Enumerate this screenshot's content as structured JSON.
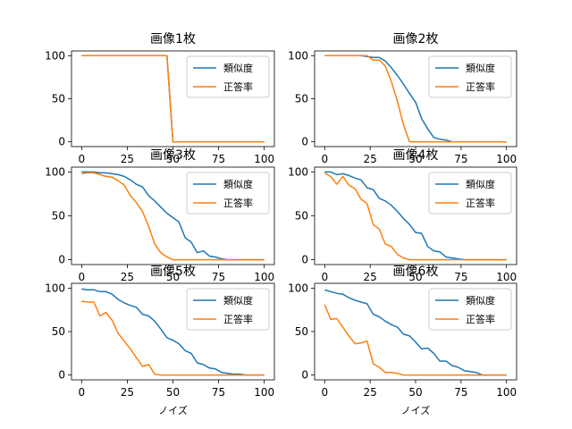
{
  "chart_data": [
    {
      "type": "line",
      "title": "画像1枚",
      "xlabel": "",
      "xlim": [
        0,
        100
      ],
      "ylim": [
        0,
        100
      ],
      "xticks": [
        0,
        25,
        50,
        75,
        100
      ],
      "yticks": [
        0,
        50,
        100
      ],
      "legend": "top-right",
      "series": [
        {
          "name": "類似度",
          "color": "#1f77b4",
          "x": [
            0,
            3.3,
            6.7,
            10,
            13.3,
            16.7,
            20,
            23.3,
            26.7,
            30,
            33.3,
            36.7,
            40,
            43.3,
            46.7,
            50,
            53.3,
            56.7,
            60,
            63.3,
            66.7,
            70,
            73.3,
            76.7,
            80,
            83.3,
            86.7,
            90,
            93.3,
            96.7,
            100
          ],
          "y": [
            100,
            100,
            100,
            100,
            100,
            100,
            100,
            100,
            100,
            100,
            100,
            100,
            100,
            100,
            100,
            0,
            0,
            0,
            0,
            0,
            0,
            0,
            0,
            0,
            0,
            0,
            0,
            0,
            0,
            0,
            0
          ]
        },
        {
          "name": "正答率",
          "color": "#ff7f0e",
          "x": [
            0,
            3.3,
            6.7,
            10,
            13.3,
            16.7,
            20,
            23.3,
            26.7,
            30,
            33.3,
            36.7,
            40,
            43.3,
            46.7,
            50,
            53.3,
            56.7,
            60,
            63.3,
            66.7,
            70,
            73.3,
            76.7,
            80,
            83.3,
            86.7,
            90,
            93.3,
            96.7,
            100
          ],
          "y": [
            100,
            100,
            100,
            100,
            100,
            100,
            100,
            100,
            100,
            100,
            100,
            100,
            100,
            100,
            100,
            0,
            0,
            0,
            0,
            0,
            0,
            0,
            0,
            0,
            0,
            0,
            0,
            0,
            0,
            0,
            0
          ]
        }
      ]
    },
    {
      "type": "line",
      "title": "画像2枚",
      "xlabel": "",
      "xlim": [
        0,
        100
      ],
      "ylim": [
        0,
        100
      ],
      "xticks": [
        0,
        25,
        50,
        75,
        100
      ],
      "yticks": [
        0,
        50,
        100
      ],
      "legend": "top-right",
      "series": [
        {
          "name": "類似度",
          "color": "#1f77b4",
          "x": [
            0,
            3.3,
            6.7,
            10,
            13.3,
            16.7,
            20,
            23.3,
            26.7,
            30,
            33.3,
            36.7,
            40,
            43.3,
            46.7,
            50,
            53.3,
            56.7,
            60,
            63.3,
            66.7,
            70,
            73.3,
            76.7,
            80,
            83.3,
            86.7,
            90,
            93.3,
            96.7,
            100
          ],
          "y": [
            100,
            100,
            100,
            100,
            100,
            100,
            100,
            99,
            98,
            98,
            94,
            86,
            77,
            67,
            56,
            46,
            27,
            15,
            5,
            3,
            2,
            0,
            0,
            0,
            0,
            0,
            0,
            0,
            0,
            0,
            0
          ]
        },
        {
          "name": "正答率",
          "color": "#ff7f0e",
          "x": [
            0,
            3.3,
            6.7,
            10,
            13.3,
            16.7,
            20,
            23.3,
            26.7,
            30,
            33.3,
            36.7,
            40,
            43.3,
            46.7,
            50,
            53.3,
            56.7,
            60,
            63.3,
            66.7,
            70,
            73.3,
            76.7,
            80,
            83.3,
            86.7,
            90,
            93.3,
            96.7,
            100
          ],
          "y": [
            100,
            100,
            100,
            100,
            100,
            100,
            100,
            100,
            95,
            95,
            88,
            70,
            47,
            20,
            0,
            0,
            0,
            0,
            0,
            0,
            0,
            0,
            0,
            0,
            0,
            0,
            0,
            0,
            0,
            0,
            0
          ]
        }
      ]
    },
    {
      "type": "line",
      "title": "画像3枚",
      "xlabel": "",
      "xlim": [
        0,
        100
      ],
      "ylim": [
        0,
        100
      ],
      "xticks": [
        0,
        25,
        50,
        75,
        100
      ],
      "yticks": [
        0,
        50,
        100
      ],
      "legend": "top-right",
      "series": [
        {
          "name": "類似度",
          "color": "#1f77b4",
          "x": [
            0,
            3.3,
            6.7,
            10,
            13.3,
            16.7,
            20,
            23.3,
            26.7,
            30,
            33.3,
            36.7,
            40,
            43.3,
            46.7,
            50,
            53.3,
            56.7,
            60,
            63.3,
            66.7,
            70,
            73.3,
            76.7,
            80,
            83.3,
            86.7,
            90,
            93.3,
            96.7,
            100
          ],
          "y": [
            100,
            100,
            100,
            99,
            99,
            98,
            97,
            95,
            91,
            86,
            83,
            73,
            67,
            60,
            53,
            48,
            43,
            25,
            20,
            8,
            10,
            4,
            3,
            1,
            0,
            0,
            0,
            0,
            0,
            0,
            0
          ]
        },
        {
          "name": "正答率",
          "color": "#ff7f0e",
          "x": [
            0,
            3.3,
            6.7,
            10,
            13.3,
            16.7,
            20,
            23.3,
            26.7,
            30,
            33.3,
            36.7,
            40,
            43.3,
            46.7,
            50,
            53.3,
            56.7,
            60,
            63.3,
            66.7,
            70,
            73.3,
            76.7,
            80,
            83.3,
            86.7,
            90,
            93.3,
            96.7,
            100
          ],
          "y": [
            98,
            99,
            99,
            97,
            95,
            94,
            90,
            85,
            73,
            65,
            55,
            38,
            18,
            8,
            3,
            0,
            0,
            0,
            0,
            0,
            0,
            0,
            0,
            0,
            0,
            0,
            0,
            0,
            0,
            0,
            0
          ]
        }
      ]
    },
    {
      "type": "line",
      "title": "画像4枚",
      "xlabel": "",
      "xlim": [
        0,
        100
      ],
      "ylim": [
        0,
        100
      ],
      "xticks": [
        0,
        25,
        50,
        75,
        100
      ],
      "yticks": [
        0,
        50,
        100
      ],
      "legend": "top-right",
      "series": [
        {
          "name": "類似度",
          "color": "#1f77b4",
          "x": [
            0,
            3.3,
            6.7,
            10,
            13.3,
            16.7,
            20,
            23.3,
            26.7,
            30,
            33.3,
            36.7,
            40,
            43.3,
            46.7,
            50,
            53.3,
            56.7,
            60,
            63.3,
            66.7,
            70,
            73.3,
            76.7,
            80,
            83.3,
            86.7,
            90,
            93.3,
            96.7,
            100
          ],
          "y": [
            100,
            100,
            97,
            98,
            96,
            93,
            91,
            82,
            80,
            70,
            67,
            62,
            55,
            47,
            40,
            31,
            30,
            15,
            10,
            9,
            3,
            2,
            1,
            0,
            0,
            0,
            0,
            0,
            0,
            0,
            0
          ]
        },
        {
          "name": "正答率",
          "color": "#ff7f0e",
          "x": [
            0,
            3.3,
            6.7,
            10,
            13.3,
            16.7,
            20,
            23.3,
            26.7,
            30,
            33.3,
            36.7,
            40,
            43.3,
            46.7,
            50,
            53.3,
            56.7,
            60,
            63.3,
            66.7,
            70,
            73.3,
            76.7,
            80,
            83.3,
            86.7,
            90,
            93.3,
            96.7,
            100
          ],
          "y": [
            99,
            95,
            86,
            95,
            85,
            81,
            69,
            64,
            40,
            35,
            18,
            15,
            6,
            2,
            0,
            0,
            0,
            0,
            0,
            0,
            0,
            0,
            0,
            0,
            0,
            0,
            0,
            0,
            0,
            0,
            0
          ]
        }
      ]
    },
    {
      "type": "line",
      "title": "画像5枚",
      "xlabel": "ノイズ",
      "xlim": [
        0,
        100
      ],
      "ylim": [
        0,
        100
      ],
      "xticks": [
        0,
        25,
        50,
        75,
        100
      ],
      "yticks": [
        0,
        50,
        100
      ],
      "legend": "top-right",
      "series": [
        {
          "name": "類似度",
          "color": "#1f77b4",
          "x": [
            0,
            3.3,
            6.7,
            10,
            13.3,
            16.7,
            20,
            23.3,
            26.7,
            30,
            33.3,
            36.7,
            40,
            43.3,
            46.7,
            50,
            53.3,
            56.7,
            60,
            63.3,
            66.7,
            70,
            73.3,
            76.7,
            80,
            83.3,
            86.7,
            90,
            93.3,
            96.7,
            100
          ],
          "y": [
            99,
            98,
            98,
            96,
            96,
            93,
            87,
            83,
            80,
            78,
            70,
            68,
            62,
            53,
            43,
            40,
            36,
            28,
            25,
            14,
            12,
            8,
            7,
            3,
            2,
            1,
            1,
            0,
            0,
            0,
            0
          ]
        },
        {
          "name": "正答率",
          "color": "#ff7f0e",
          "x": [
            0,
            3.3,
            6.7,
            10,
            13.3,
            16.7,
            20,
            23.3,
            26.7,
            30,
            33.3,
            36.7,
            40,
            43.3,
            46.7,
            50,
            53.3,
            56.7,
            60,
            63.3,
            66.7,
            70,
            73.3,
            76.7,
            80,
            83.3,
            86.7,
            90,
            93.3,
            96.7,
            100
          ],
          "y": [
            85,
            84,
            84,
            68,
            72,
            63,
            48,
            39,
            30,
            20,
            10,
            12,
            1,
            0,
            0,
            0,
            0,
            0,
            0,
            0,
            0,
            0,
            0,
            0,
            0,
            0,
            0,
            0,
            0,
            0,
            0
          ]
        }
      ]
    },
    {
      "type": "line",
      "title": "画像6枚",
      "xlabel": "ノイズ",
      "xlim": [
        0,
        100
      ],
      "ylim": [
        0,
        100
      ],
      "xticks": [
        0,
        25,
        50,
        75,
        100
      ],
      "yticks": [
        0,
        50,
        100
      ],
      "legend": "top-right",
      "series": [
        {
          "name": "類似度",
          "color": "#1f77b4",
          "x": [
            0,
            3.3,
            6.7,
            10,
            13.3,
            16.7,
            20,
            23.3,
            26.7,
            30,
            33.3,
            36.7,
            40,
            43.3,
            46.7,
            50,
            53.3,
            56.7,
            60,
            63.3,
            66.7,
            70,
            73.3,
            76.7,
            80,
            83.3,
            86.7,
            90,
            93.3,
            96.7,
            100
          ],
          "y": [
            98,
            96,
            94,
            93,
            89,
            86,
            84,
            82,
            70,
            67,
            62,
            58,
            55,
            47,
            45,
            38,
            30,
            31,
            25,
            16,
            16,
            11,
            9,
            5,
            4,
            3,
            0,
            0,
            0,
            0,
            0
          ]
        },
        {
          "name": "正答率",
          "color": "#ff7f0e",
          "x": [
            0,
            3.3,
            6.7,
            10,
            13.3,
            16.7,
            20,
            23.3,
            26.7,
            30,
            33.3,
            36.7,
            40,
            43.3,
            46.7,
            50,
            53.3,
            56.7,
            60,
            63.3,
            66.7,
            70,
            73.3,
            76.7,
            80,
            83.3,
            86.7,
            90,
            93.3,
            96.7,
            100
          ],
          "y": [
            81,
            64,
            65,
            55,
            45,
            36,
            37,
            39,
            13,
            9,
            3,
            3,
            2,
            0,
            0,
            0,
            0,
            0,
            0,
            0,
            0,
            0,
            0,
            0,
            0,
            0,
            0,
            0,
            0,
            0,
            0
          ]
        }
      ]
    }
  ]
}
